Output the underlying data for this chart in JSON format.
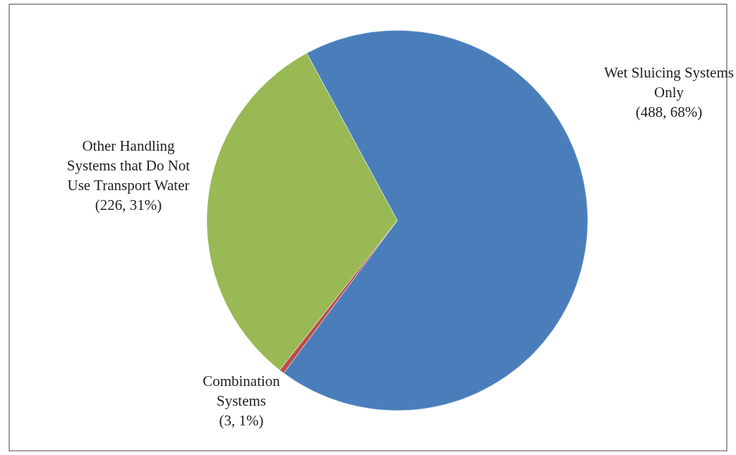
{
  "chart_data": {
    "type": "pie",
    "categories": [
      "Wet Sluicing Systems Only",
      "Combination Systems",
      "Other Handling Systems that Do Not Use Transport Water"
    ],
    "values": [
      488,
      3,
      226
    ],
    "colors": [
      "#4a7ebb",
      "#be4b48",
      "#98b954"
    ],
    "value_labels": [
      "(488, 68%)",
      "(3, 1%)",
      "(226, 31%)"
    ]
  }
}
